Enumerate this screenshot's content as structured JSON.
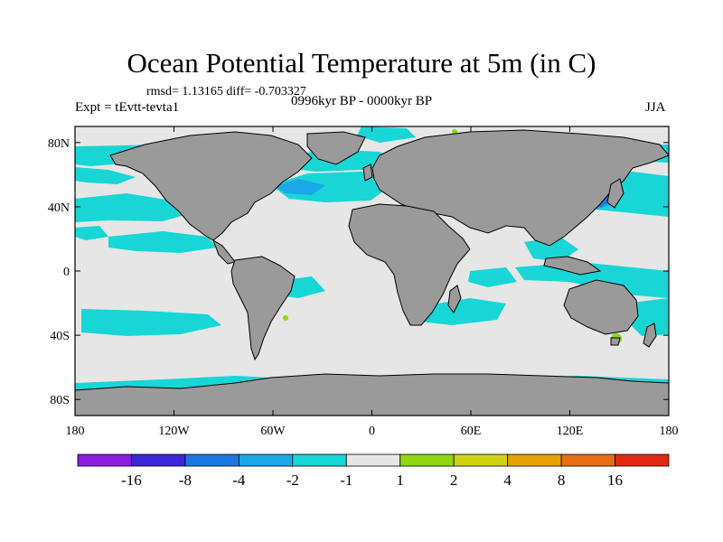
{
  "title": "Ocean Potential Temperature at 5m (in C)",
  "stats": "rmsd= 1.13165  diff= -0.703327",
  "experiment": "Expt = tEvtt-tevta1",
  "period": "0996kyr BP - 0000kyr BP",
  "season": "JJA",
  "chart_data": {
    "type": "heatmap",
    "projection": "cylindrical equidistant",
    "variable": "Ocean Potential Temperature at 5m",
    "units": "C",
    "x_axis": {
      "range": [
        -180,
        180
      ],
      "ticks": [
        -180,
        -120,
        -60,
        0,
        60,
        120,
        180
      ],
      "tick_labels": [
        "180",
        "120W",
        "60W",
        "0",
        "60E",
        "120E",
        "180"
      ]
    },
    "y_axis": {
      "range": [
        -90,
        90
      ],
      "ticks": [
        80,
        40,
        0,
        -40,
        -80
      ],
      "tick_labels": [
        "80N",
        "40N",
        "0",
        "40S",
        "80S"
      ]
    },
    "colorbar": {
      "boundary_labels": [
        "-16",
        "-8",
        "-4",
        "-2",
        "-1",
        "1",
        "2",
        "4",
        "8",
        "16"
      ],
      "colors": [
        "#8a1ee0",
        "#3c28d8",
        "#1a78e0",
        "#1aa8e6",
        "#18d6d6",
        "#e6e6e6",
        "#90d614",
        "#d2d214",
        "#e6a000",
        "#e66e14",
        "#e02a14"
      ]
    },
    "annotations": {
      "rmsd": 1.13165,
      "diff": -0.703327
    }
  },
  "colors": {
    "land": "#9a9a9a",
    "ocean_neutral": "#e6e6e6",
    "cyan": "#18d6d6",
    "blue": "#1aa8e6",
    "dark_blue": "#1a78e0",
    "green": "#90d614"
  }
}
